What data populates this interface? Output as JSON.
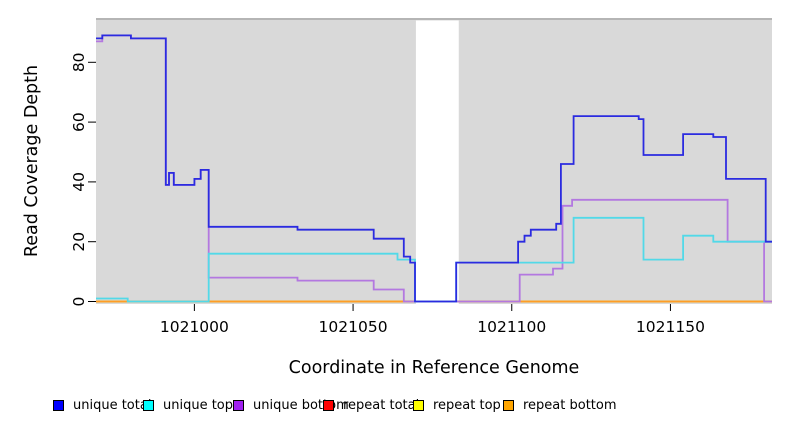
{
  "chart_data": {
    "type": "line",
    "step": "after",
    "title": "",
    "xlabel": "Coordinate in Reference Genome",
    "ylabel": "Read Coverage Depth",
    "x_ticks": [
      1021000,
      1021050,
      1021100,
      1021150
    ],
    "y_ticks": [
      0,
      20,
      40,
      60,
      80
    ],
    "x_range": [
      1020969,
      1021182
    ],
    "ylim": [
      0,
      94
    ],
    "grid": false,
    "panel_bg": "#d9d9d9",
    "gap_color": "#ffffff",
    "gap_band": [
      1021069.8,
      1021083.3
    ],
    "legend_position": "bottom",
    "series": [
      {
        "key": "repeat-total",
        "name": "repeat total",
        "color": "#ff0000",
        "stroke": "#e82222",
        "points": [
          [
            1020969,
            0
          ],
          [
            1021182,
            0
          ]
        ]
      },
      {
        "key": "repeat-top",
        "name": "repeat top",
        "color": "#ffff00",
        "stroke": "#f0e400",
        "points": [
          [
            1020969,
            0
          ],
          [
            1021182,
            0
          ]
        ]
      },
      {
        "key": "repeat-bottom",
        "name": "repeat bottom",
        "color": "#ffa500",
        "stroke": "#ff9d26",
        "points": [
          [
            1020969,
            0
          ],
          [
            1021182,
            0
          ]
        ]
      },
      {
        "key": "unique-bottom",
        "name": "unique bottom",
        "color": "#a020f0",
        "stroke": "#b378e0",
        "points": [
          [
            1020969,
            87
          ],
          [
            1020971,
            89
          ],
          [
            1020980,
            88
          ],
          [
            1020991,
            39
          ],
          [
            1020992,
            43
          ],
          [
            1020993.5,
            39
          ],
          [
            1021000,
            41
          ],
          [
            1021002,
            44
          ],
          [
            1021004.5,
            8
          ],
          [
            1021032.5,
            7
          ],
          [
            1021056.5,
            4
          ],
          [
            1021066,
            0
          ],
          [
            1021102.5,
            9
          ],
          [
            1021113,
            11
          ],
          [
            1021116,
            32
          ],
          [
            1021119,
            34
          ],
          [
            1021168,
            20
          ],
          [
            1021179.5,
            0
          ],
          [
            1021182,
            0
          ]
        ]
      },
      {
        "key": "unique-top",
        "name": "unique top",
        "color": "#00ffff",
        "stroke": "#52d9e8",
        "points": [
          [
            1020969,
            1
          ],
          [
            1020979,
            0
          ],
          [
            1021004.5,
            16
          ],
          [
            1021064,
            14
          ],
          [
            1021069.5,
            0
          ],
          [
            1021082.5,
            13
          ],
          [
            1021119.5,
            28
          ],
          [
            1021141.5,
            14
          ],
          [
            1021154,
            22
          ],
          [
            1021163.5,
            20
          ],
          [
            1021182,
            20
          ]
        ]
      },
      {
        "key": "unique-total",
        "name": "unique total",
        "color": "#0000ff",
        "stroke": "#2b2be0",
        "points": [
          [
            1020969,
            88
          ],
          [
            1020971,
            89
          ],
          [
            1020980,
            88
          ],
          [
            1020991,
            39
          ],
          [
            1020992,
            43
          ],
          [
            1020993.5,
            39
          ],
          [
            1021000,
            41
          ],
          [
            1021002,
            44
          ],
          [
            1021004.5,
            25
          ],
          [
            1021032.5,
            24
          ],
          [
            1021056.5,
            21
          ],
          [
            1021066,
            15
          ],
          [
            1021068,
            13
          ],
          [
            1021069.5,
            0
          ],
          [
            1021082.5,
            13
          ],
          [
            1021102,
            20
          ],
          [
            1021104,
            22
          ],
          [
            1021106,
            24
          ],
          [
            1021114,
            26
          ],
          [
            1021115.5,
            46
          ],
          [
            1021119.5,
            62
          ],
          [
            1021140,
            61
          ],
          [
            1021141.5,
            49
          ],
          [
            1021154,
            56
          ],
          [
            1021163.5,
            55
          ],
          [
            1021167.5,
            41
          ],
          [
            1021180,
            20
          ],
          [
            1021182,
            20
          ]
        ]
      }
    ]
  },
  "legend": [
    {
      "label": "unique total",
      "color": "#0000ff"
    },
    {
      "label": "unique top",
      "color": "#00ffff"
    },
    {
      "label": "unique bottom",
      "color": "#a020f0"
    },
    {
      "label": "repeat total",
      "color": "#ff0000"
    },
    {
      "label": "repeat top",
      "color": "#ffff00"
    },
    {
      "label": "repeat bottom",
      "color": "#ffa500"
    }
  ]
}
